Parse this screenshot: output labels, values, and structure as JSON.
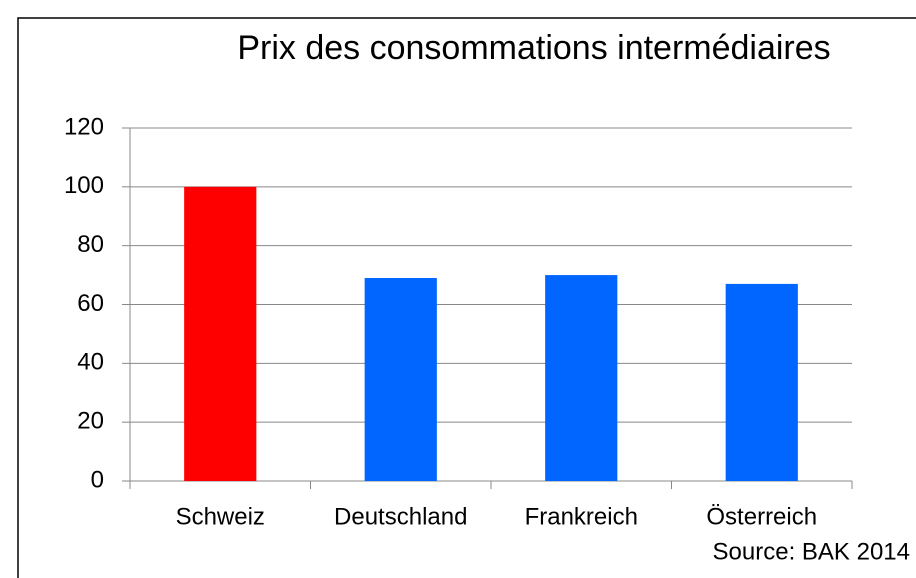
{
  "chart_data": {
    "type": "bar",
    "title": "Prix des consommations intermédiaires",
    "categories": [
      "Schweiz",
      "Deutschland",
      "Frankreich",
      "Österreich"
    ],
    "values": [
      100,
      69,
      70,
      67
    ],
    "colors": [
      "#ff0000",
      "#0066ff",
      "#0066ff",
      "#0066ff"
    ],
    "ylim": [
      0,
      120
    ],
    "yticks": [
      0,
      20,
      40,
      60,
      80,
      100,
      120
    ],
    "grid": true,
    "source": "Source: BAK 2014"
  }
}
